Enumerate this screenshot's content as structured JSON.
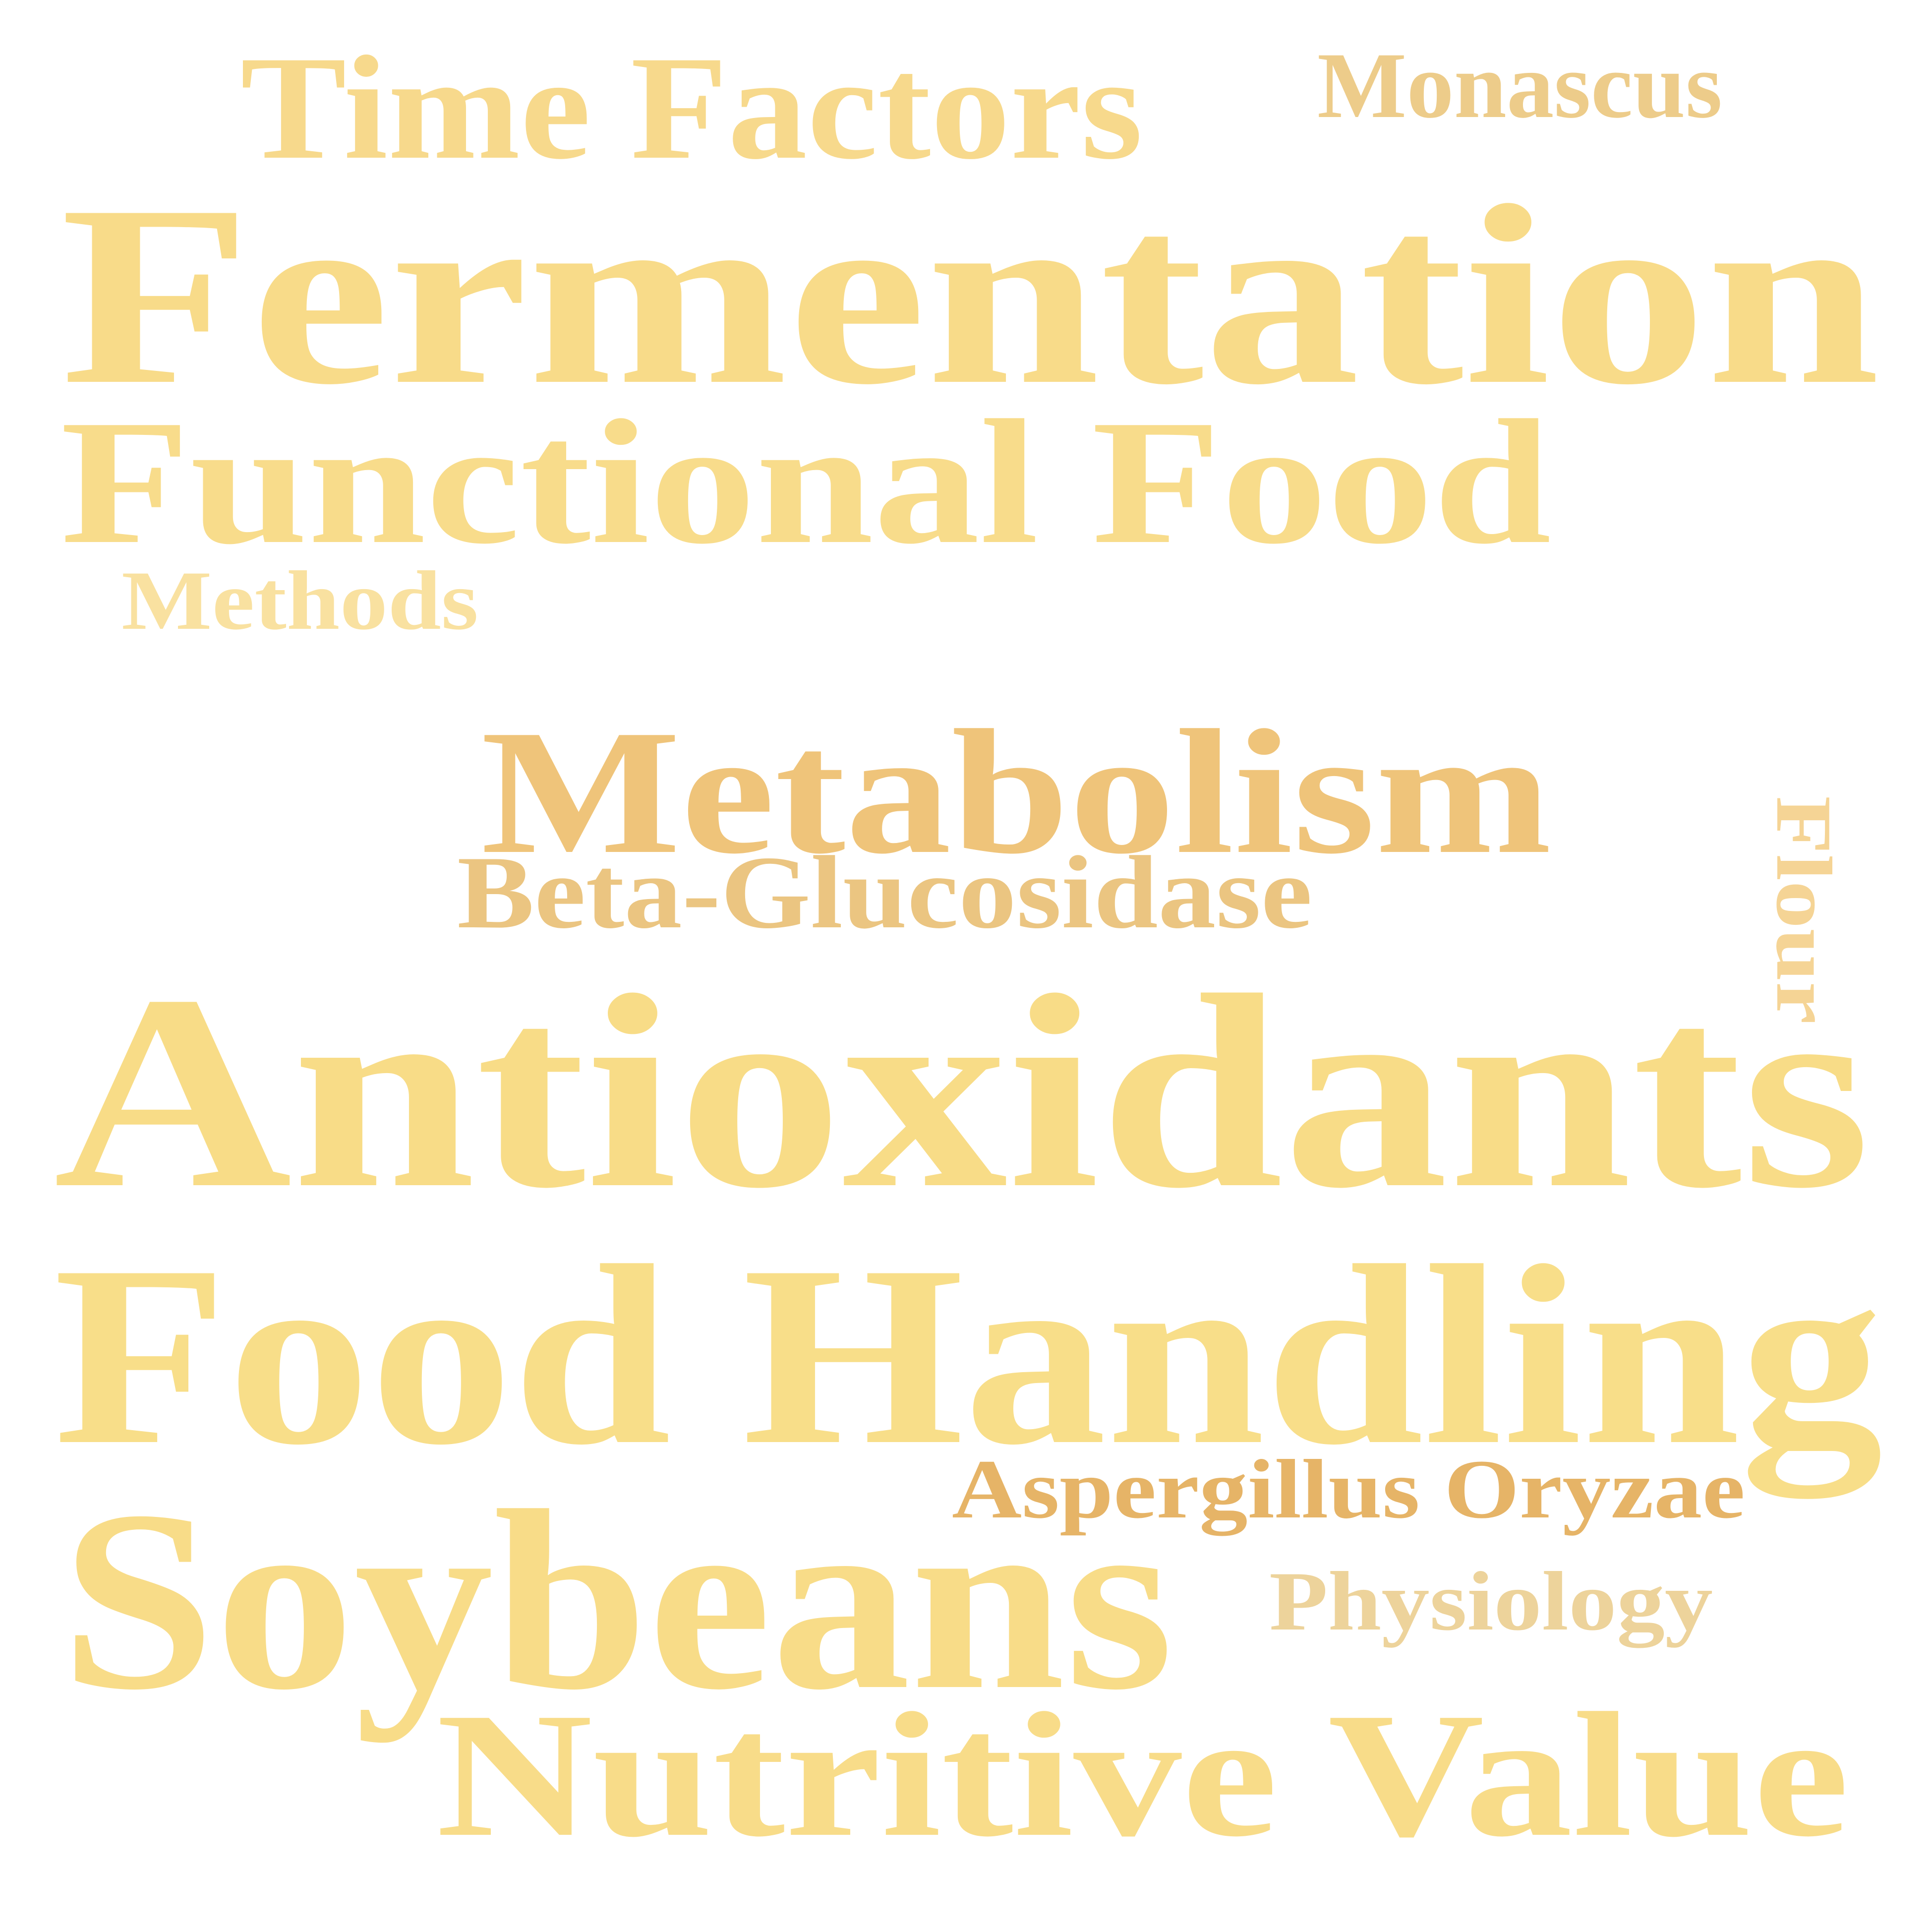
{
  "words": [
    {
      "id": "time-factors",
      "text": "Time Factors",
      "color": "#F7D98C"
    },
    {
      "id": "monascus",
      "text": "Monascus",
      "color": "#EDCC8A"
    },
    {
      "id": "fermentation",
      "text": "Fermentation",
      "color": "#F8DB89"
    },
    {
      "id": "functional-food",
      "text": "Functional Food",
      "color": "#F8DC8B"
    },
    {
      "id": "methods",
      "text": "Methods",
      "color": "#F9E1A0"
    },
    {
      "id": "flour",
      "text": "Flour",
      "color": "#F5D495"
    },
    {
      "id": "metabolism",
      "text": "Metabolism",
      "color": "#EFC47A"
    },
    {
      "id": "beta-glucosidase",
      "text": "Beta-Glucosidase",
      "color": "#EBC581"
    },
    {
      "id": "antioxidants",
      "text": "Antioxidants",
      "color": "#F8DC87"
    },
    {
      "id": "food-handling",
      "text": "Food Handling",
      "color": "#F8DE89"
    },
    {
      "id": "aspergillus-oryzae",
      "text": "Aspergillus Oryzae",
      "color": "#E6B467"
    },
    {
      "id": "soybeans",
      "text": "Soybeans",
      "color": "#F8DC88"
    },
    {
      "id": "physiology",
      "text": "Physiology",
      "color": "#EDD39B"
    },
    {
      "id": "nutritive-value",
      "text": "Nutritive Value",
      "color": "#F8DC89"
    }
  ]
}
